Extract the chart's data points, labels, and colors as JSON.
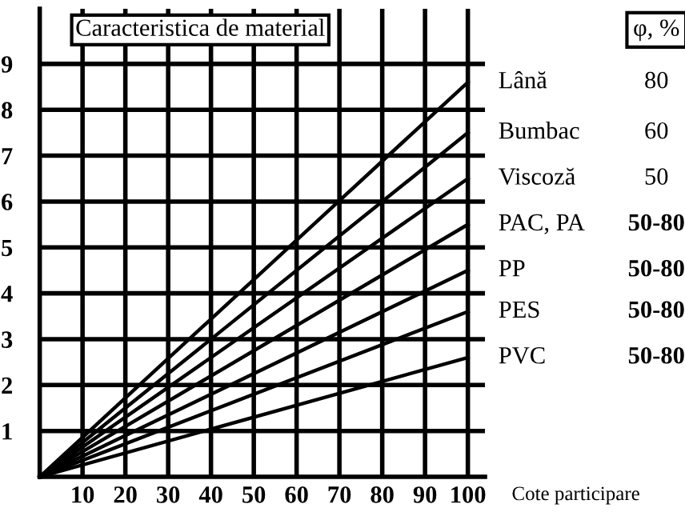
{
  "chart_data": {
    "type": "line",
    "title": "Caracteristica de material",
    "xlabel": "Cote participare",
    "x": [
      0,
      100
    ],
    "series": [
      {
        "name": "Lână",
        "color": "#000000",
        "values": [
          0,
          8.6
        ]
      },
      {
        "name": "Bumbac",
        "color": "#000000",
        "values": [
          0,
          7.5
        ]
      },
      {
        "name": "Viscoză",
        "color": "#000000",
        "values": [
          0,
          6.5
        ]
      },
      {
        "name": "PAC, PA",
        "color": "#000000",
        "values": [
          0,
          5.5
        ]
      },
      {
        "name": "PP",
        "color": "#000000",
        "values": [
          0,
          4.5
        ]
      },
      {
        "name": "PES",
        "color": "#000000",
        "values": [
          0,
          3.6
        ]
      },
      {
        "name": "PVC",
        "color": "#000000",
        "values": [
          0,
          2.6
        ]
      }
    ],
    "annotations": [
      "φ, %",
      "80",
      "60",
      "50",
      "50-80",
      "50-80",
      "50-80",
      "50-80"
    ],
    "xlim": [
      0,
      104
    ],
    "ylim": [
      0,
      10.2
    ],
    "xticks": [
      10,
      20,
      30,
      40,
      50,
      60,
      70,
      80,
      90,
      100
    ],
    "yticks": [
      1,
      2,
      3,
      4,
      5,
      6,
      7,
      8,
      9
    ],
    "grid": true,
    "legend": false,
    "marker": "none",
    "line_style": "solid"
  }
}
